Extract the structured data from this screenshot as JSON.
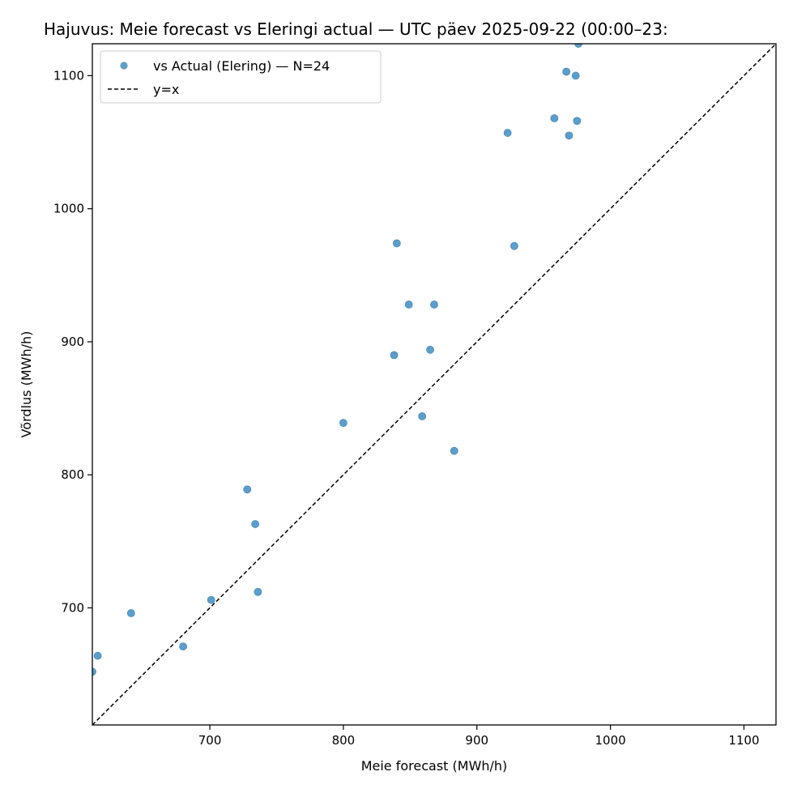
{
  "chart_data": {
    "type": "scatter",
    "title": "Hajuvus: Meie forecast vs Eleringi actual — UTC päev 2025-09-22 (00:00–23:",
    "xlabel": "Meie forecast (MWh/h)",
    "ylabel": "Võrdlus (MWh/h)",
    "xlim": [
      612,
      1124
    ],
    "ylim": [
      612,
      1124
    ],
    "xticks": [
      700,
      800,
      900,
      1000,
      1100
    ],
    "yticks": [
      700,
      800,
      900,
      1000,
      1100
    ],
    "grid": false,
    "legend_position": "top-left",
    "series": [
      {
        "name": "vs Actual (Elering) — N=24",
        "color": "#1f77b4",
        "points": [
          {
            "x": 612,
            "y": 652
          },
          {
            "x": 616,
            "y": 664
          },
          {
            "x": 641,
            "y": 696
          },
          {
            "x": 680,
            "y": 671
          },
          {
            "x": 701,
            "y": 706
          },
          {
            "x": 728,
            "y": 789
          },
          {
            "x": 734,
            "y": 763
          },
          {
            "x": 736,
            "y": 712
          },
          {
            "x": 800,
            "y": 839
          },
          {
            "x": 838,
            "y": 890
          },
          {
            "x": 840,
            "y": 974
          },
          {
            "x": 849,
            "y": 928
          },
          {
            "x": 859,
            "y": 844
          },
          {
            "x": 865,
            "y": 894
          },
          {
            "x": 868,
            "y": 928
          },
          {
            "x": 883,
            "y": 818
          },
          {
            "x": 923,
            "y": 1057
          },
          {
            "x": 928,
            "y": 972
          },
          {
            "x": 958,
            "y": 1068
          },
          {
            "x": 967,
            "y": 1103
          },
          {
            "x": 969,
            "y": 1055
          },
          {
            "x": 974,
            "y": 1100
          },
          {
            "x": 975,
            "y": 1066
          },
          {
            "x": 976,
            "y": 1124
          }
        ]
      }
    ],
    "reference_line": {
      "name": "y=x",
      "color": "#000000",
      "style": "dashed"
    }
  }
}
